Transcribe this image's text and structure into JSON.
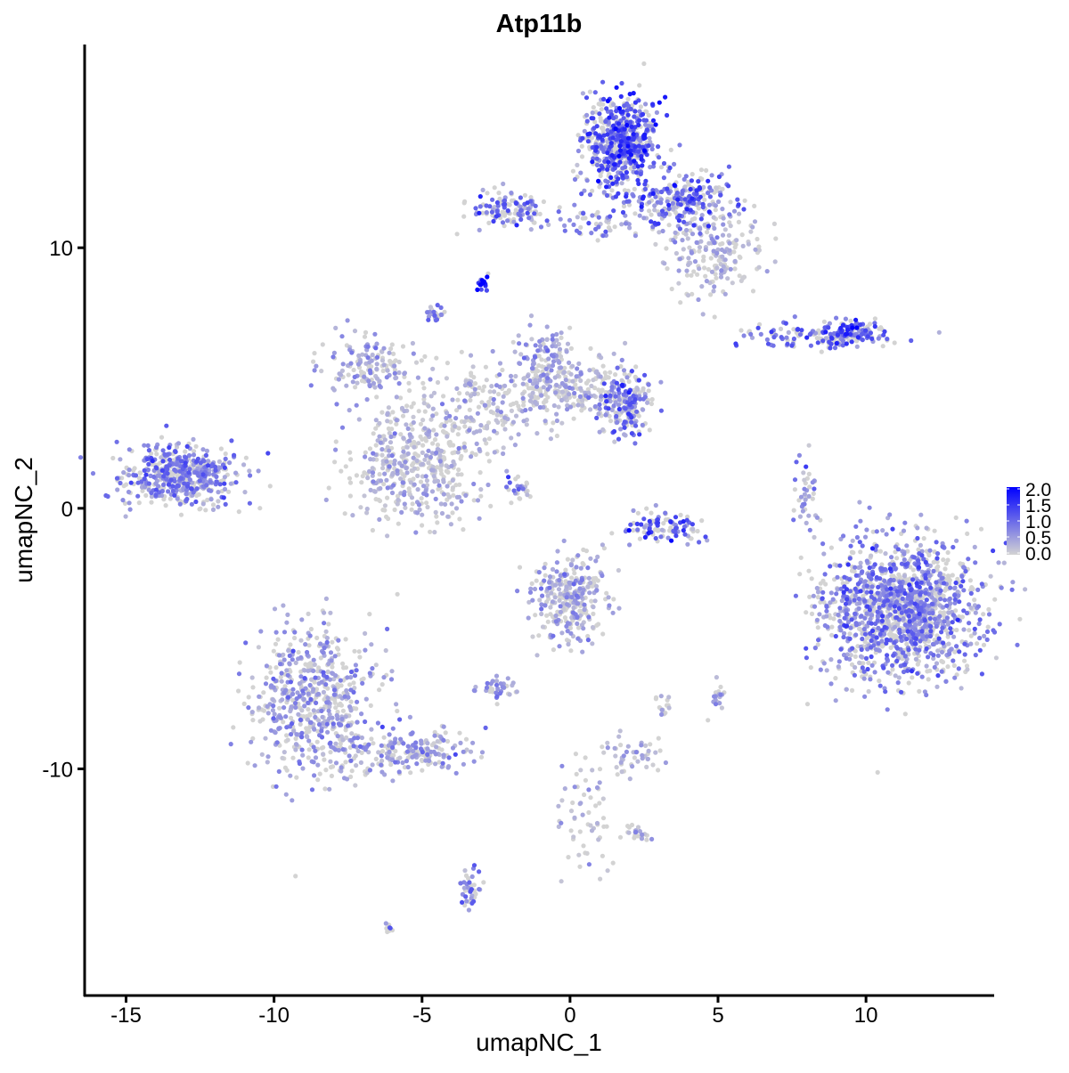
{
  "chart_data": {
    "type": "scatter",
    "title": "Atp11b",
    "xlabel": "umapNC_1",
    "ylabel": "umapNC_2",
    "xlim": [
      -16.4,
      14.3
    ],
    "ylim": [
      -18.7,
      17.8
    ],
    "xticks": [
      -15,
      -10,
      -5,
      0,
      5,
      10
    ],
    "xtick_labels": [
      "-15",
      "-10",
      "-5",
      "0",
      "5",
      "10"
    ],
    "yticks": [
      -10,
      0,
      10
    ],
    "ytick_labels": [
      "-10",
      "0",
      "10"
    ],
    "grid": false,
    "legend": {
      "placement": "right",
      "type": "colorbar",
      "range": [
        0,
        2
      ],
      "tick_labels": [
        "0.0",
        "0.5",
        "1.0",
        "1.5",
        "2.0"
      ],
      "low_color": "#d3d3d3",
      "high_color": "#0000ff"
    },
    "clusters_note_free": true,
    "clusters": [
      {
        "cx": -13.2,
        "cy": 1.2,
        "sx": 1.0,
        "sy": 0.6,
        "n": 500,
        "expr": 0.7
      },
      {
        "cx": 1.7,
        "cy": 14.0,
        "sx": 0.6,
        "sy": 0.9,
        "n": 600,
        "expr": 1.0
      },
      {
        "cx": 3.8,
        "cy": 11.8,
        "sx": 1.0,
        "sy": 0.5,
        "n": 250,
        "expr": 0.9
      },
      {
        "cx": 4.8,
        "cy": 9.8,
        "sx": 0.9,
        "sy": 0.8,
        "n": 200,
        "expr": 0.3
      },
      {
        "cx": -2.0,
        "cy": 11.5,
        "sx": 0.8,
        "sy": 0.35,
        "n": 120,
        "expr": 0.8
      },
      {
        "cx": 1.0,
        "cy": 11.0,
        "sx": 0.8,
        "sy": 0.3,
        "n": 50,
        "expr": 0.6
      },
      {
        "cx": -2.9,
        "cy": 8.6,
        "sx": 0.1,
        "sy": 0.15,
        "n": 20,
        "expr": 1.7
      },
      {
        "cx": -6.9,
        "cy": 5.4,
        "sx": 0.8,
        "sy": 0.6,
        "n": 150,
        "expr": 0.4
      },
      {
        "cx": -5.2,
        "cy": 1.5,
        "sx": 1.1,
        "sy": 1.0,
        "n": 400,
        "expr": 0.3
      },
      {
        "cx": -4.0,
        "cy": 3.5,
        "sx": 1.2,
        "sy": 0.8,
        "n": 150,
        "expr": 0.3
      },
      {
        "cx": -0.5,
        "cy": 4.5,
        "sx": 1.5,
        "sy": 0.7,
        "n": 300,
        "expr": 0.3
      },
      {
        "cx": 1.9,
        "cy": 4.0,
        "sx": 0.5,
        "sy": 0.6,
        "n": 180,
        "expr": 0.8
      },
      {
        "cx": -0.8,
        "cy": 5.8,
        "sx": 0.5,
        "sy": 0.5,
        "n": 100,
        "expr": 0.5
      },
      {
        "cx": -4.6,
        "cy": 7.4,
        "sx": 0.15,
        "sy": 0.2,
        "n": 25,
        "expr": 0.7
      },
      {
        "cx": -1.7,
        "cy": 0.8,
        "sx": 0.3,
        "sy": 0.3,
        "n": 25,
        "expr": 0.7
      },
      {
        "cx": 3.2,
        "cy": -0.7,
        "sx": 0.9,
        "sy": 0.3,
        "n": 100,
        "expr": 1.0
      },
      {
        "cx": 8.6,
        "cy": 6.6,
        "sx": 1.3,
        "sy": 0.25,
        "n": 150,
        "expr": 0.8
      },
      {
        "cx": 9.5,
        "cy": 6.8,
        "sx": 0.4,
        "sy": 0.2,
        "n": 80,
        "expr": 1.1
      },
      {
        "cx": 8.1,
        "cy": 0.5,
        "sx": 0.2,
        "sy": 0.8,
        "n": 40,
        "expr": 0.6
      },
      {
        "cx": 11.2,
        "cy": -3.9,
        "sx": 1.4,
        "sy": 1.3,
        "n": 1400,
        "expr": 0.7
      },
      {
        "cx": -8.7,
        "cy": -7.4,
        "sx": 1.0,
        "sy": 1.4,
        "n": 600,
        "expr": 0.5
      },
      {
        "cx": -5.5,
        "cy": -9.3,
        "sx": 1.2,
        "sy": 0.5,
        "n": 200,
        "expr": 0.5
      },
      {
        "cx": 0.0,
        "cy": -3.5,
        "sx": 0.7,
        "sy": 0.8,
        "n": 300,
        "expr": 0.4
      },
      {
        "cx": -2.5,
        "cy": -6.9,
        "sx": 0.4,
        "sy": 0.2,
        "n": 40,
        "expr": 0.6
      },
      {
        "cx": 2.2,
        "cy": -9.5,
        "sx": 0.5,
        "sy": 0.3,
        "n": 50,
        "expr": 0.3
      },
      {
        "cx": -3.4,
        "cy": -14.7,
        "sx": 0.2,
        "sy": 0.5,
        "n": 40,
        "expr": 0.8
      },
      {
        "cx": -6.1,
        "cy": -16.1,
        "sx": 0.08,
        "sy": 0.08,
        "n": 8,
        "expr": 0.9
      },
      {
        "cx": 0.5,
        "cy": -11.5,
        "sx": 0.6,
        "sy": 1.2,
        "n": 60,
        "expr": 0.2
      },
      {
        "cx": 2.3,
        "cy": -12.5,
        "sx": 0.3,
        "sy": 0.15,
        "n": 25,
        "expr": 0.3
      },
      {
        "cx": 5.0,
        "cy": -7.3,
        "sx": 0.15,
        "sy": 0.3,
        "n": 20,
        "expr": 0.5
      },
      {
        "cx": 3.2,
        "cy": -7.5,
        "sx": 0.15,
        "sy": 0.3,
        "n": 15,
        "expr": 0.2
      }
    ]
  }
}
